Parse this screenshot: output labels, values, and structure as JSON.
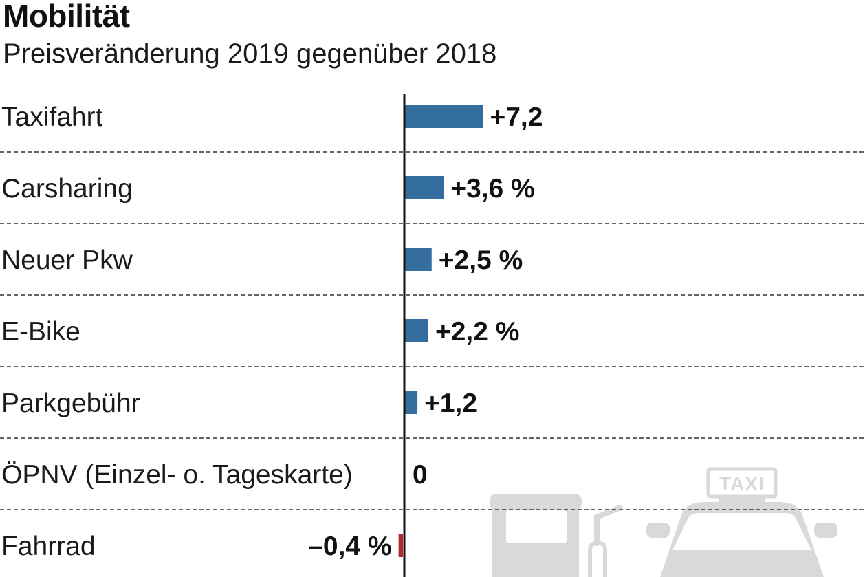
{
  "title": "Mobilität",
  "subtitle": "Preisveränderung 2019 gegenüber 2018",
  "chart_data": {
    "type": "bar",
    "orientation": "horizontal",
    "title": "Mobilität",
    "subtitle": "Preisveränderung 2019 gegenüber 2018",
    "categories": [
      "Taxifahrt",
      "Carsharing",
      "Neuer Pkw",
      "E-Bike",
      "Parkgebühr",
      "ÖPNV (Einzel- o. Tageskarte)",
      "Fahrrad"
    ],
    "values": [
      7.2,
      3.6,
      2.5,
      2.2,
      1.2,
      0,
      -0.4
    ],
    "value_labels": [
      "+7,2",
      "+3,6 %",
      "+2,5 %",
      "+2,2 %",
      "+1,2",
      "0",
      "–0,4 %"
    ],
    "unit": "%",
    "grid": "dashed row separators",
    "colors": {
      "positive": "#336e9e",
      "negative": "#b3282d",
      "icons": "#d9d9d9"
    },
    "illustration": {
      "icons": [
        "fuel-pump-icon",
        "taxi-icon"
      ],
      "sign_text": "TAXI"
    }
  }
}
